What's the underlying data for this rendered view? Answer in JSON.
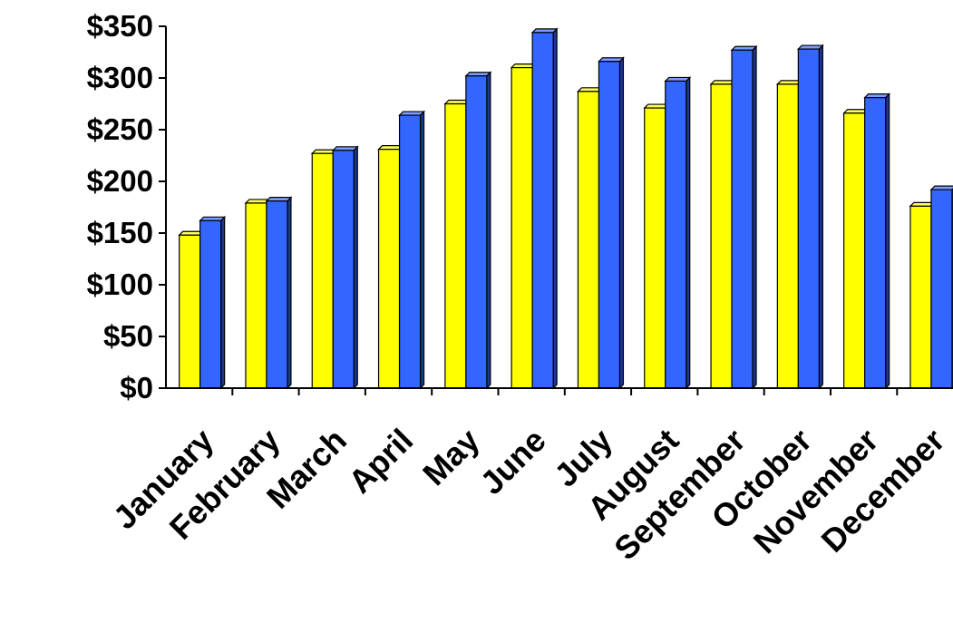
{
  "chart_data": {
    "type": "bar",
    "style": "3d-clustered-column",
    "categories": [
      "January",
      "February",
      "March",
      "April",
      "May",
      "June",
      "July",
      "August",
      "September",
      "October",
      "November",
      "December"
    ],
    "series": [
      {
        "color": "#ffff00",
        "values": [
          148,
          179,
          227,
          231,
          275,
          310,
          287,
          271,
          294,
          294,
          266,
          176
        ]
      },
      {
        "color": "#3366ff",
        "values": [
          162,
          181,
          230,
          264,
          302,
          344,
          316,
          297,
          327,
          328,
          281,
          192
        ]
      }
    ],
    "ylim": [
      0,
      350
    ],
    "yticks": [
      0,
      50,
      100,
      150,
      200,
      250,
      300,
      350
    ],
    "ytick_labels": [
      "$0",
      "$50",
      "$100",
      "$150",
      "$200",
      "$250",
      "$300",
      "$350"
    ],
    "grid": false,
    "legend": "none"
  }
}
